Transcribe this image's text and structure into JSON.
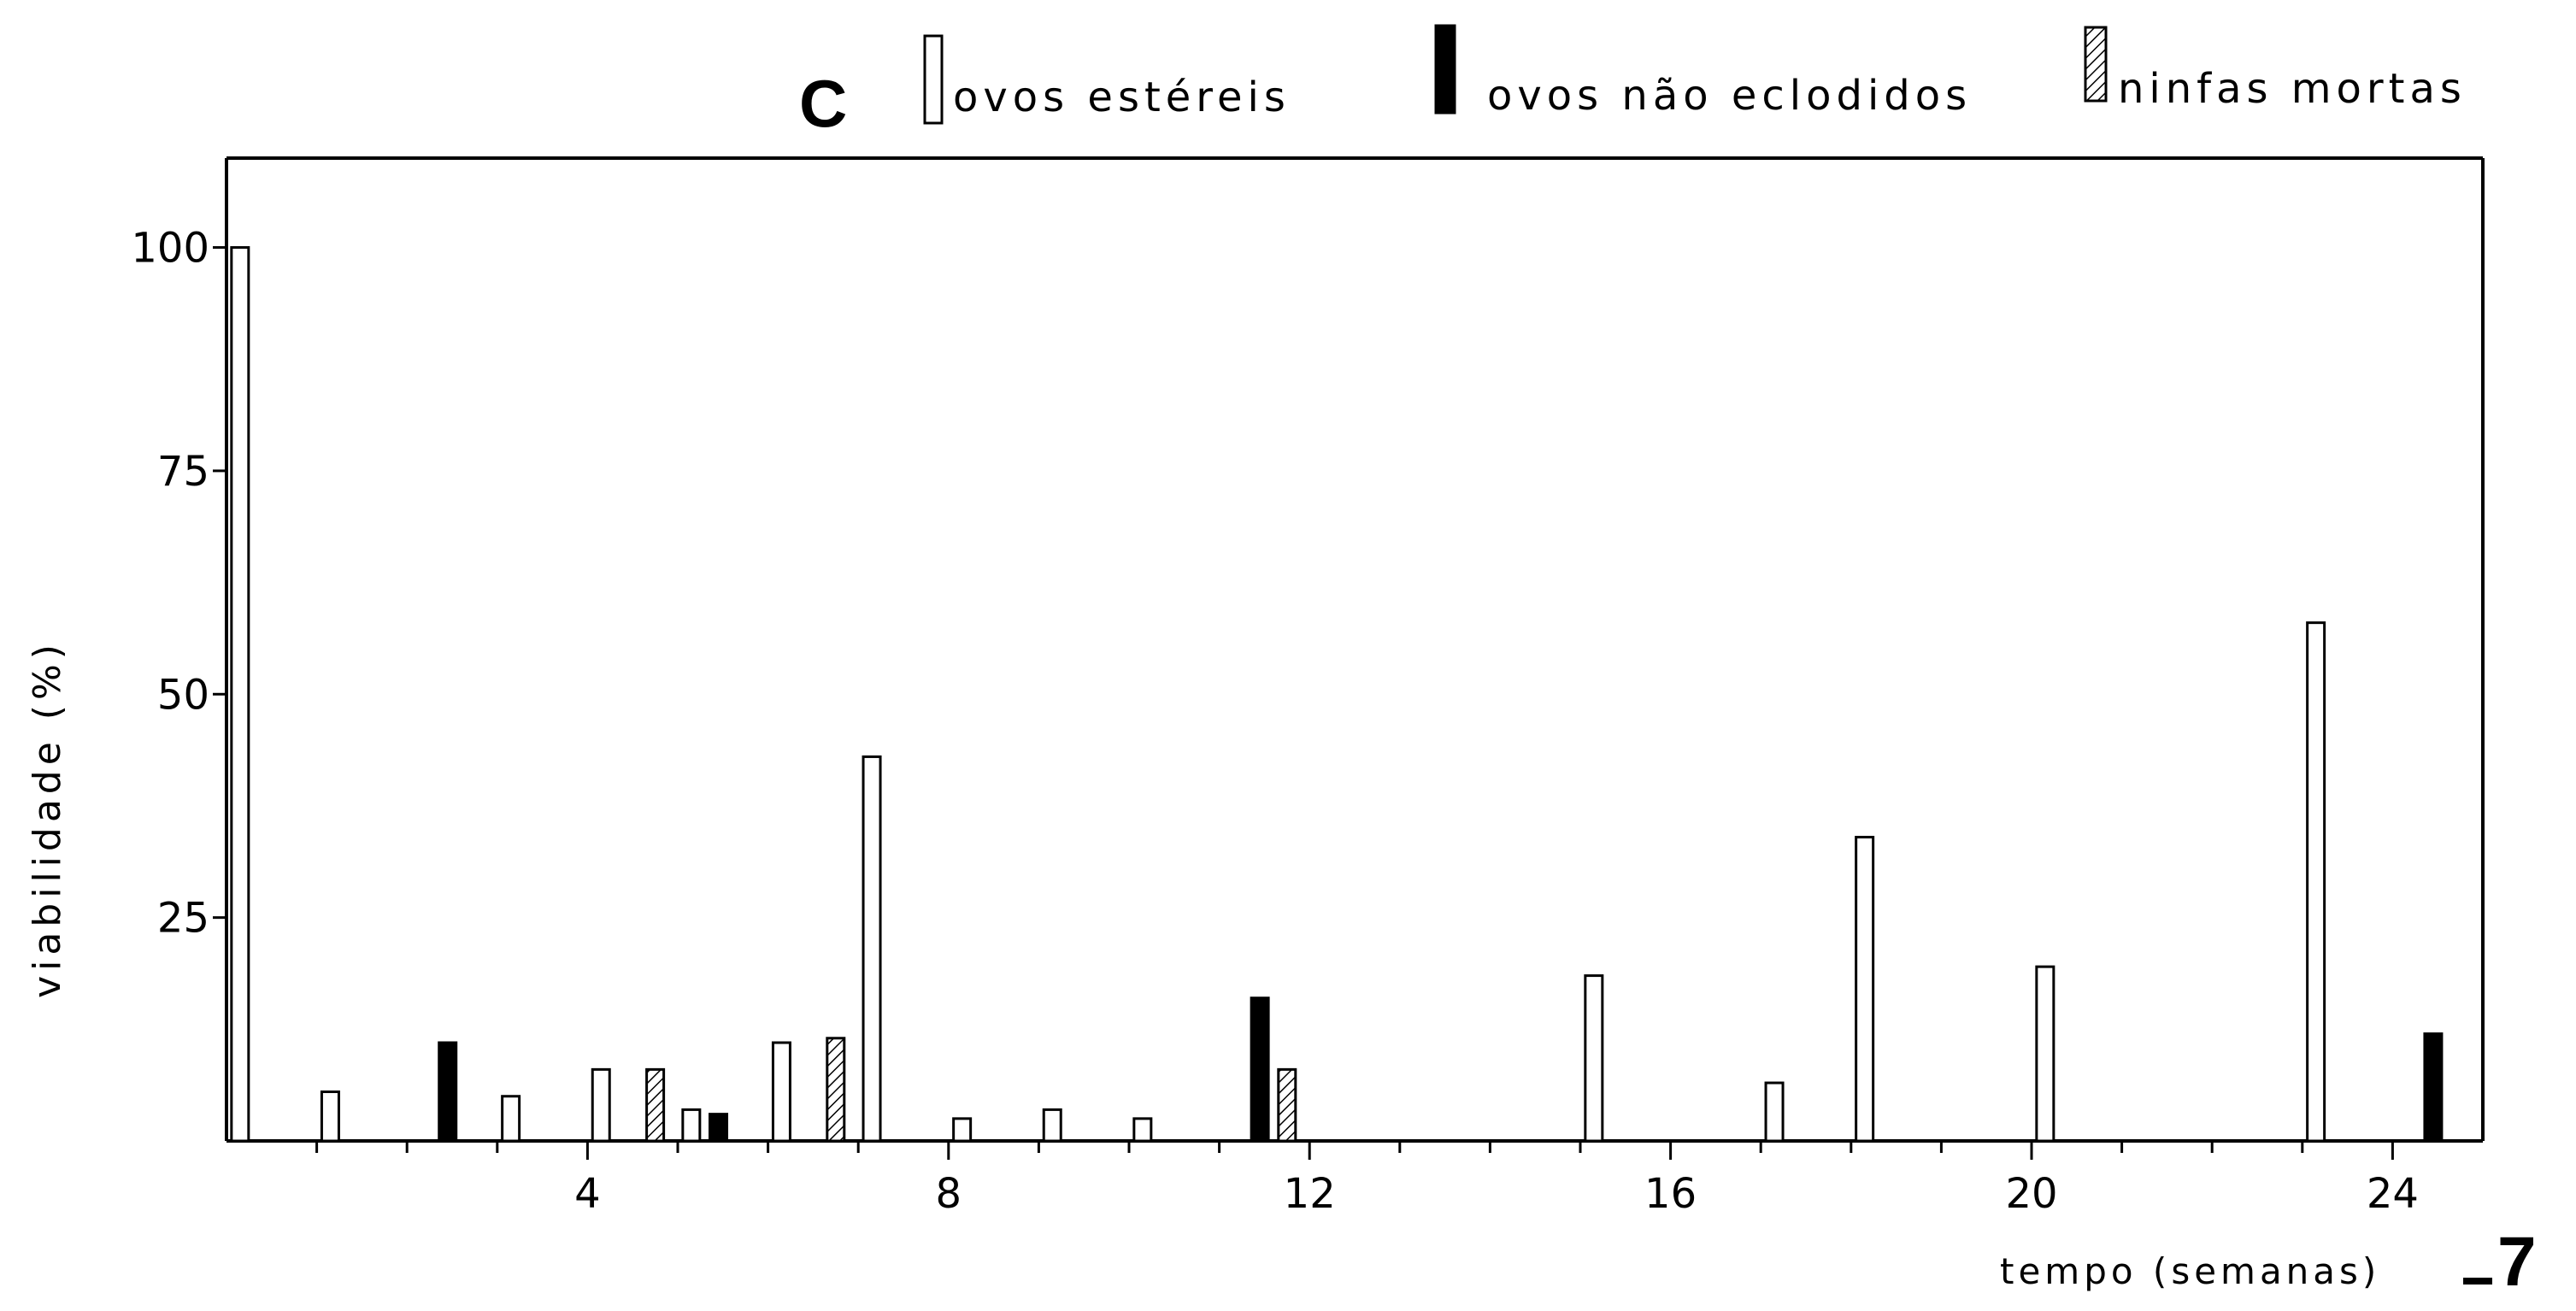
{
  "panel_label": "C",
  "figure_number": "7",
  "chart_data": {
    "type": "bar",
    "title": "",
    "xlabel": "tempo (semanas)",
    "ylabel": "viabilidade (%)",
    "xlim": [
      0,
      25
    ],
    "ylim": [
      0,
      110
    ],
    "x_ticks": [
      4,
      8,
      12,
      16,
      20,
      24
    ],
    "y_ticks": [
      25,
      50,
      75,
      100
    ],
    "grid": false,
    "legend_position": "top-right",
    "series": [
      {
        "name": "ovos estéreis",
        "pattern": "open",
        "x": [
          0.15,
          1.15,
          3.15,
          4.15,
          5.15,
          6.15,
          7.15,
          8.15,
          9.15,
          10.15,
          15.15,
          17.15,
          18.15,
          20.15,
          23.15
        ],
        "values": [
          100,
          5.5,
          5,
          8,
          3.5,
          11,
          43,
          2.5,
          3.5,
          2.5,
          18.5,
          6.5,
          34,
          19.5,
          58
        ]
      },
      {
        "name": "ovos não eclodidos",
        "pattern": "solid",
        "x": [
          2.45,
          5.45,
          11.45,
          24.45
        ],
        "values": [
          11,
          3,
          16,
          12
        ]
      },
      {
        "name": "ninfas mortas",
        "pattern": "hatched",
        "x": [
          4.75,
          6.75,
          11.75
        ],
        "values": [
          8,
          11.5,
          8
        ]
      }
    ]
  }
}
